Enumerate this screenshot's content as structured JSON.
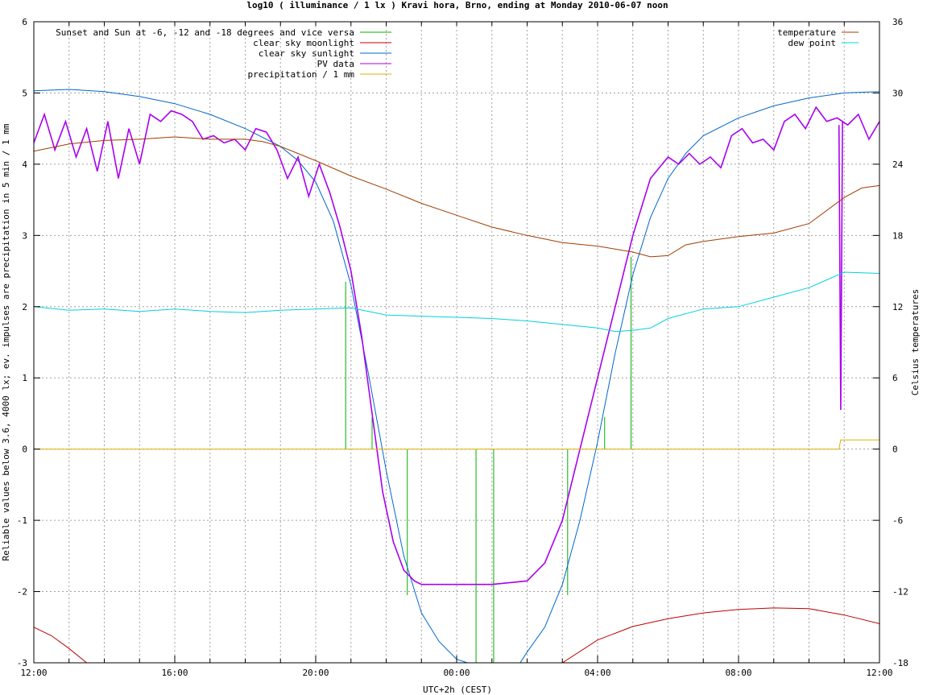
{
  "chart_data": {
    "type": "line",
    "title": "log10 ( illuminance / 1 lx ) Kravi hora, Brno, ending at Monday 2010-06-07 noon",
    "xlabel": "UTC+2h (CEST)",
    "ylabel": "Reliable values below 3.6, 4000 lx; ev. impulses are precipitation in 5 min / 1 mm",
    "y2label": "Celsius temperatures",
    "xlim_hours": [
      12,
      36
    ],
    "ylim": [
      -3,
      6
    ],
    "y2lim": [
      -18,
      36
    ],
    "x_ticks": [
      {
        "h": 12,
        "label": "12:00"
      },
      {
        "h": 16,
        "label": "16:00"
      },
      {
        "h": 20,
        "label": "20:00"
      },
      {
        "h": 24,
        "label": "00:00"
      },
      {
        "h": 28,
        "label": "04:00"
      },
      {
        "h": 32,
        "label": "08:00"
      },
      {
        "h": 36,
        "label": "12:00"
      }
    ],
    "x_minor_every_hours": 1,
    "y_ticks": [
      -3,
      -2,
      -1,
      0,
      1,
      2,
      3,
      4,
      5,
      6
    ],
    "y2_ticks": [
      -18,
      -12,
      -6,
      0,
      6,
      12,
      18,
      24,
      30,
      36
    ],
    "grid": true,
    "legend_left": [
      {
        "name": "Sunset and Sun at -6, -12 and -18 degrees and vice versa",
        "color": "#00b000"
      },
      {
        "name": "clear sky moonlight",
        "color": "#c00000"
      },
      {
        "name": "clear sky sunlight",
        "color": "#0066cc"
      },
      {
        "name": "PV data",
        "color": "#aa00ee"
      },
      {
        "name": "precipitation / 1 mm",
        "color": "#e0b000"
      }
    ],
    "legend_right": [
      {
        "name": "temperature",
        "color": "#a03c00"
      },
      {
        "name": "dew point",
        "color": "#00d0e0"
      }
    ],
    "series": [
      {
        "name": "Sunset and Sun at -6, -12 and -18 degrees and vice versa",
        "kind": "impulses",
        "axis": "y",
        "x": [
          20.85,
          21.6,
          22.6,
          24.55,
          25.05,
          27.15,
          28.2,
          28.95
        ],
        "values": [
          2.35,
          0.45,
          0,
          0,
          0,
          0,
          0.45,
          2.7
        ],
        "from": [
          0,
          0,
          -2.05,
          -3,
          -3,
          -2.05,
          0,
          0
        ]
      },
      {
        "name": "clear sky moonlight",
        "axis": "y",
        "x": [
          12.0,
          12.5,
          13.0,
          13.5,
          27.0,
          28.0,
          29.0,
          30.0,
          31.0,
          32.0,
          33.0,
          34.0,
          35.0,
          36.0
        ],
        "values": [
          -2.5,
          -2.62,
          -2.8,
          -3.0,
          -3.0,
          -2.68,
          -2.49,
          -2.38,
          -2.3,
          -2.25,
          -2.23,
          -2.24,
          -2.33,
          -2.45
        ]
      },
      {
        "name": "clear sky sunlight",
        "axis": "y",
        "x": [
          12.0,
          13.0,
          14.0,
          15.0,
          16.0,
          17.0,
          18.0,
          19.0,
          19.5,
          20.0,
          20.5,
          21.0,
          21.5,
          22.0,
          22.5,
          23.0,
          23.5,
          24.0,
          24.3,
          25.8,
          26.0,
          26.5,
          27.0,
          27.5,
          28.0,
          28.5,
          29.0,
          29.5,
          30.0,
          30.5,
          31.0,
          32.0,
          33.0,
          34.0,
          35.0,
          36.0
        ],
        "values": [
          5.03,
          5.05,
          5.02,
          4.95,
          4.85,
          4.7,
          4.5,
          4.25,
          4.05,
          3.75,
          3.2,
          2.3,
          1.05,
          -0.3,
          -1.5,
          -2.3,
          -2.7,
          -2.95,
          -3.0,
          -3.0,
          -2.85,
          -2.5,
          -1.9,
          -1.0,
          0.1,
          1.35,
          2.45,
          3.25,
          3.8,
          4.15,
          4.4,
          4.65,
          4.82,
          4.93,
          5.0,
          5.02
        ]
      },
      {
        "name": "PV data",
        "axis": "y",
        "x": [
          12.0,
          12.3,
          12.6,
          12.9,
          13.2,
          13.5,
          13.8,
          14.1,
          14.4,
          14.7,
          15.0,
          15.3,
          15.6,
          15.9,
          16.2,
          16.5,
          16.8,
          17.1,
          17.4,
          17.7,
          18.0,
          18.3,
          18.6,
          18.9,
          19.2,
          19.5,
          19.8,
          20.1,
          20.4,
          20.7,
          21.0,
          21.3,
          21.6,
          21.9,
          22.2,
          22.5,
          22.8,
          23.0,
          25.0,
          26.0,
          26.5,
          27.0,
          27.5,
          28.0,
          28.5,
          29.0,
          29.5,
          30.0,
          30.3,
          30.6,
          30.9,
          31.2,
          31.5,
          31.8,
          32.1,
          32.4,
          32.7,
          33.0,
          33.3,
          33.6,
          33.9,
          34.2,
          34.5,
          34.8,
          35.1,
          35.4,
          35.7,
          36.0
        ],
        "values": [
          4.3,
          4.7,
          4.2,
          4.6,
          4.1,
          4.5,
          3.9,
          4.6,
          3.8,
          4.5,
          4.0,
          4.7,
          4.6,
          4.75,
          4.7,
          4.6,
          4.35,
          4.4,
          4.3,
          4.35,
          4.2,
          4.5,
          4.45,
          4.2,
          3.8,
          4.1,
          3.55,
          4.0,
          3.6,
          3.1,
          2.5,
          1.6,
          0.5,
          -0.6,
          -1.3,
          -1.7,
          -1.85,
          -1.9,
          -1.9,
          -1.85,
          -1.6,
          -1.0,
          0.0,
          1.0,
          2.0,
          3.0,
          3.8,
          4.1,
          4.0,
          4.15,
          4.0,
          4.1,
          3.95,
          4.4,
          4.5,
          4.3,
          4.35,
          4.2,
          4.6,
          4.7,
          4.5,
          4.8,
          4.6,
          4.65,
          4.55,
          4.7,
          4.35,
          4.6
        ]
      },
      {
        "name": "PV data spike",
        "axis": "y",
        "x": [
          34.85,
          34.9,
          34.95
        ],
        "values": [
          4.55,
          0.55,
          4.6
        ]
      },
      {
        "name": "precipitation / 1 mm",
        "axis": "y",
        "x": [
          12.0,
          34.85,
          34.9,
          36.0
        ],
        "values": [
          0.0,
          0.0,
          0.13,
          0.13
        ]
      },
      {
        "name": "temperature",
        "axis": "y2",
        "x": [
          12.0,
          13.0,
          14.0,
          15.0,
          16.0,
          17.0,
          18.0,
          18.5,
          19.0,
          19.5,
          20.0,
          21.0,
          22.0,
          23.0,
          24.0,
          25.0,
          26.0,
          27.0,
          28.0,
          29.0,
          29.5,
          30.0,
          30.5,
          31.0,
          32.0,
          33.0,
          34.0,
          35.0,
          35.5,
          36.0
        ],
        "values": [
          25.1,
          25.7,
          26.0,
          26.1,
          26.3,
          26.1,
          26.1,
          25.9,
          25.5,
          24.9,
          24.3,
          23.0,
          21.9,
          20.7,
          19.7,
          18.7,
          18.0,
          17.4,
          17.1,
          16.6,
          16.2,
          16.3,
          17.2,
          17.5,
          17.9,
          18.2,
          19.0,
          21.2,
          22.0,
          22.2
        ]
      },
      {
        "name": "dew point",
        "axis": "y2",
        "x": [
          12.0,
          13.0,
          14.0,
          15.0,
          16.0,
          17.0,
          18.0,
          19.0,
          20.0,
          21.0,
          22.0,
          23.0,
          24.0,
          25.0,
          26.0,
          27.0,
          28.0,
          28.5,
          29.0,
          29.5,
          30.0,
          31.0,
          32.0,
          33.0,
          34.0,
          35.0,
          36.0
        ],
        "values": [
          12.0,
          11.7,
          11.8,
          11.6,
          11.8,
          11.6,
          11.5,
          11.7,
          11.8,
          11.9,
          11.3,
          11.2,
          11.1,
          11.0,
          10.8,
          10.5,
          10.2,
          9.9,
          10.0,
          10.2,
          11.0,
          11.8,
          12.0,
          12.8,
          13.6,
          14.9,
          14.8
        ]
      }
    ]
  }
}
